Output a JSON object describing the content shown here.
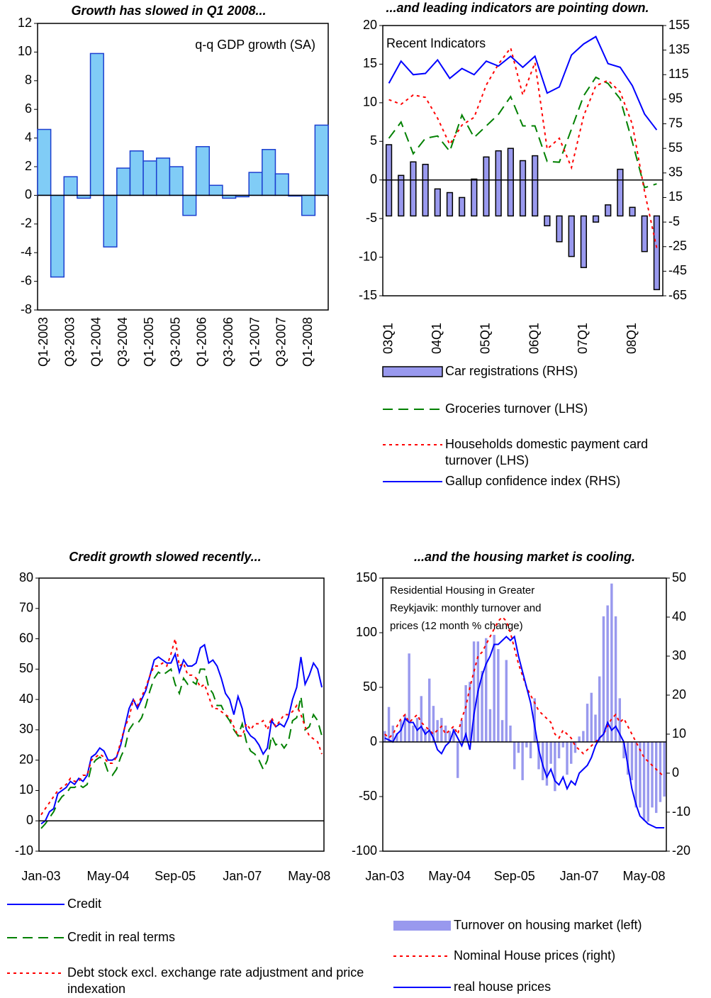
{
  "chart_data": [
    {
      "type": "bar",
      "title": "Growth has slowed in Q1 2008...",
      "annotation": "q-q GDP growth (SA)",
      "categories": [
        "Q1-2003",
        null,
        "Q3-2003",
        null,
        "Q1-2004",
        null,
        "Q3-2004",
        null,
        "Q1-2005",
        null,
        "Q3-2005",
        null,
        "Q1-2006",
        null,
        "Q3-2006",
        null,
        "Q1-2007",
        null,
        "Q3-2007",
        null,
        "Q1-2008",
        null
      ],
      "values": [
        4.6,
        -5.7,
        1.3,
        -0.2,
        9.9,
        -3.6,
        1.9,
        3.1,
        2.4,
        2.6,
        2.0,
        -1.4,
        3.4,
        0.7,
        -0.2,
        -0.1,
        1.6,
        3.2,
        1.5,
        -0.05,
        -1.4,
        4.9
      ],
      "color": "#80ccf6",
      "border": "#1c3fd0",
      "ylim": [
        -8,
        12
      ],
      "yticks": [
        -8,
        -6,
        -4,
        -2,
        0,
        2,
        4,
        6,
        8,
        10,
        12
      ]
    },
    {
      "type": "combo",
      "title": "...and leading indicators are pointing down.",
      "annotation": [
        "Recent Indicators"
      ],
      "categories": [
        "03Q1",
        null,
        null,
        null,
        "04Q1",
        null,
        null,
        null,
        "05Q1",
        null,
        null,
        null,
        "06Q1",
        null,
        null,
        null,
        "07Q1",
        null,
        null,
        null,
        "08Q1",
        null,
        null
      ],
      "series": [
        {
          "name": "Car registrations (RHS)",
          "type": "bar",
          "axis": "y2",
          "color": "#9999ee",
          "border": "#000000",
          "values": [
            58,
            33,
            44,
            42,
            22,
            19,
            15,
            30,
            48,
            53,
            55,
            45,
            49,
            -8,
            -21,
            -33,
            -42,
            -5,
            9,
            38,
            7,
            -29,
            -60
          ]
        },
        {
          "name": "Groceries turnover (LHS)",
          "type": "line",
          "dash": "dashed",
          "color": "#008000",
          "values": [
            5.4,
            7.5,
            3.4,
            5.4,
            5.7,
            3.7,
            8.4,
            5.5,
            7.0,
            8.5,
            10.8,
            7.0,
            7.0,
            2.4,
            2.3,
            6.6,
            10.9,
            13.3,
            12.5,
            10.5,
            4.9,
            -1.0,
            -0.5
          ]
        },
        {
          "name": "Households domestic payment card turnover (LHS)",
          "type": "line",
          "dash": "dotted",
          "color": "#ff0000",
          "values": [
            10.4,
            9.8,
            11.0,
            10.7,
            8.0,
            4.6,
            7.1,
            8.1,
            12.3,
            15.0,
            17.1,
            11.0,
            15.2,
            4.0,
            5.4,
            1.6,
            8.3,
            12.2,
            12.9,
            11.4,
            7.2,
            -1.5,
            -8.8
          ]
        },
        {
          "name": "Gallup confidence index (RHS)",
          "type": "line",
          "axis": "y2",
          "dash": "solid",
          "color": "#0000ff",
          "values": [
            108,
            126,
            115,
            116,
            127,
            112,
            120,
            115,
            126,
            122,
            130,
            121,
            130,
            100,
            105,
            131,
            140,
            146,
            124,
            121,
            106,
            83,
            70
          ]
        }
      ],
      "ylim": [
        -15,
        20
      ],
      "yticks": [
        -15,
        -10,
        -5,
        0,
        5,
        10,
        15,
        20
      ],
      "y2lim": [
        -65,
        155
      ],
      "y2ticks": [
        -65,
        -45,
        -25,
        -5,
        15,
        35,
        55,
        75,
        95,
        115,
        135,
        155
      ]
    },
    {
      "type": "combo",
      "title": "Credit growth slowed recently...",
      "categories": [
        "Jan-03",
        null,
        null,
        null,
        null,
        null,
        null,
        null,
        null,
        null,
        null,
        null,
        null,
        null,
        null,
        null,
        "May-04",
        null,
        null,
        null,
        null,
        null,
        null,
        null,
        null,
        null,
        null,
        null,
        null,
        null,
        null,
        null,
        "Sep-05",
        null,
        null,
        null,
        null,
        null,
        null,
        null,
        null,
        null,
        null,
        null,
        null,
        null,
        null,
        null,
        "Jan-07",
        null,
        null,
        null,
        null,
        null,
        null,
        null,
        null,
        null,
        null,
        null,
        null,
        null,
        null,
        null,
        "May-08",
        null,
        null,
        null
      ],
      "series": [
        {
          "name": "Credit",
          "type": "line",
          "dash": "solid",
          "color": "#0000ff",
          "values": [
            -1,
            0,
            3,
            4,
            9,
            10,
            11,
            13,
            12,
            14,
            13,
            15,
            21,
            22,
            24,
            23,
            20,
            20,
            21,
            25,
            31,
            37,
            40,
            37,
            40,
            43,
            48,
            53,
            54,
            53,
            52,
            52,
            55,
            49,
            53,
            51,
            51,
            52,
            57,
            58,
            52,
            53,
            51,
            47,
            42,
            40,
            35,
            41,
            37,
            30,
            28,
            27,
            25,
            22,
            24,
            33,
            31,
            32,
            31,
            34,
            40,
            44,
            54,
            45,
            48,
            52,
            50,
            44
          ]
        },
        {
          "name": "Credit in real terms",
          "type": "line",
          "dash": "dashed",
          "color": "#008000",
          "values": [
            -2.5,
            -1,
            1,
            3,
            6,
            8,
            9,
            11,
            11,
            12,
            11,
            12,
            18,
            20,
            21,
            20,
            16,
            15,
            17,
            21,
            24,
            30,
            32,
            32,
            34,
            38,
            43,
            47,
            49,
            48,
            49,
            50,
            45,
            42,
            47,
            45,
            46,
            45,
            50,
            50,
            44,
            42,
            38,
            38,
            35,
            33,
            30,
            28,
            32,
            26,
            23,
            22,
            20,
            17,
            20,
            28,
            25,
            26,
            24,
            26,
            33,
            34,
            41,
            30,
            31,
            35,
            33,
            28
          ]
        },
        {
          "name": "Debt stock excl. exchange rate adjustment and price indexation",
          "type": "line",
          "dash": "dotted",
          "color": "#ff0000",
          "values": [
            2,
            4,
            6,
            8,
            10,
            11,
            12,
            14,
            13,
            13,
            15,
            15,
            20,
            21,
            22,
            21,
            19,
            19,
            21,
            26,
            31,
            34,
            40,
            38,
            41,
            44,
            48,
            51,
            51,
            52,
            51,
            55,
            60,
            51,
            52,
            48,
            48,
            47,
            44,
            45,
            41,
            37,
            37,
            36,
            35,
            34,
            31,
            28,
            28,
            32,
            30,
            32,
            32,
            33,
            30,
            34,
            31,
            33,
            35,
            35,
            36,
            38,
            35,
            31,
            28,
            27,
            26,
            22
          ]
        }
      ],
      "ylim": [
        -10,
        80
      ],
      "yticks": [
        -10,
        0,
        10,
        20,
        30,
        40,
        50,
        60,
        70,
        80
      ]
    },
    {
      "type": "combo",
      "title": "...and the housing market is cooling.",
      "annotation": [
        "Residential Housing in Greater",
        "Reykjavik: monthly turnover and",
        "prices (12 month % change)"
      ],
      "categories": [
        "Jan-03",
        null,
        null,
        null,
        null,
        null,
        null,
        null,
        null,
        null,
        null,
        null,
        null,
        null,
        null,
        null,
        "May-04",
        null,
        null,
        null,
        null,
        null,
        null,
        null,
        null,
        null,
        null,
        null,
        null,
        null,
        null,
        null,
        "Sep-05",
        null,
        null,
        null,
        null,
        null,
        null,
        null,
        null,
        null,
        null,
        null,
        null,
        null,
        null,
        null,
        "Jan-07",
        null,
        null,
        null,
        null,
        null,
        null,
        null,
        null,
        null,
        null,
        null,
        null,
        null,
        null,
        null,
        "May-08",
        null,
        null,
        null,
        null,
        null
      ],
      "series": [
        {
          "name": "Turnover on housing market (left)",
          "type": "bar",
          "color": "#9999ee",
          "values": [
            10,
            32,
            15,
            8,
            20,
            25,
            81,
            15,
            22,
            42,
            12,
            58,
            33,
            20,
            22,
            15,
            10,
            12,
            -33,
            20,
            52,
            55,
            92,
            92,
            65,
            95,
            30,
            98,
            85,
            20,
            75,
            15,
            -25,
            -10,
            -35,
            -5,
            -15,
            40,
            -25,
            -35,
            -40,
            -20,
            -45,
            -15,
            -5,
            -30,
            -20,
            -10,
            5,
            10,
            35,
            45,
            25,
            60,
            115,
            125,
            145,
            115,
            40,
            -15,
            -30,
            -35,
            -60,
            -60,
            -72,
            -73,
            -60,
            -65,
            -55,
            -50
          ]
        },
        {
          "name": "Nominal House prices (right)",
          "type": "line",
          "axis": "y2",
          "dash": "dotted",
          "color": "#ff0000",
          "values": [
            10,
            9,
            10,
            12,
            14,
            15,
            13,
            14,
            15,
            13,
            12,
            11,
            10,
            11,
            12,
            10,
            11,
            12,
            10,
            14,
            17,
            22,
            26,
            30,
            31,
            33,
            35,
            37,
            39,
            40,
            39,
            36,
            32,
            28,
            25,
            22,
            20,
            18,
            16,
            15,
            14,
            13,
            10,
            9,
            11,
            10,
            9,
            7,
            6,
            5,
            6,
            7,
            8,
            9,
            10,
            12,
            14,
            15,
            13,
            14,
            12,
            10,
            8,
            6,
            4,
            3,
            2,
            1,
            0,
            -1
          ]
        },
        {
          "name": "real house prices",
          "type": "line",
          "axis": "y2",
          "dash": "solid",
          "color": "#0000ff",
          "values": [
            9,
            8.5,
            8,
            10,
            11,
            14,
            13,
            13,
            11,
            12,
            10,
            11,
            9,
            6,
            5,
            7,
            8,
            11,
            9,
            7,
            10,
            6,
            15,
            21,
            25,
            28,
            30,
            33,
            33,
            34,
            35,
            34,
            35,
            30,
            26,
            22,
            18,
            12,
            6,
            2,
            -1,
            1,
            -2,
            -3,
            -1,
            -4,
            -2,
            -3,
            0,
            1,
            2,
            4,
            7,
            9,
            10,
            13,
            11,
            12,
            10,
            8,
            2,
            -4,
            -8,
            -11,
            -12,
            -13,
            -13.5,
            -14,
            -14,
            -14
          ]
        }
      ],
      "ylim": [
        -100,
        150
      ],
      "yticks": [
        -100,
        -50,
        0,
        50,
        100,
        150
      ],
      "y2lim": [
        -20,
        50
      ],
      "y2ticks": [
        -20,
        -10,
        0,
        10,
        20,
        30,
        40,
        50
      ]
    }
  ]
}
